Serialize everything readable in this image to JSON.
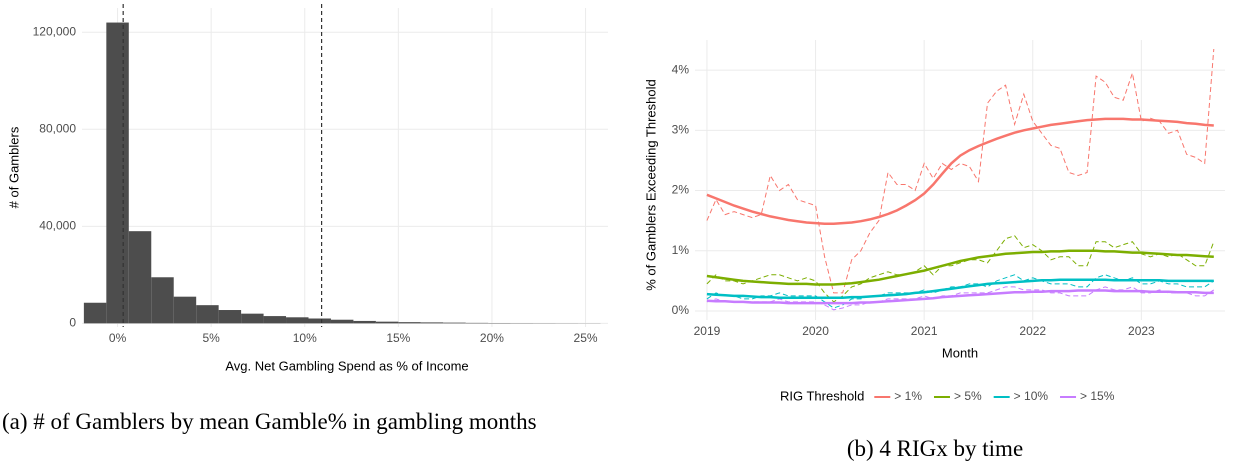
{
  "chart_data": [
    {
      "type": "histogram",
      "ylabel": "# of Gamblers",
      "xlabel": "Avg. Net Gambling Spend as % of Income",
      "caption": "(a) # of Gamblers by mean Gamble% in gambling months",
      "bins": [
        -1.8,
        -0.6,
        0.6,
        1.8,
        3.0,
        4.2,
        5.4,
        6.6,
        7.8,
        9.0,
        10.2,
        11.4,
        12.6,
        13.8,
        15.0,
        16.2,
        17.4,
        18.6,
        19.8,
        21.0,
        22.2,
        23.4,
        24.6,
        25.8
      ],
      "values": [
        8500,
        124000,
        38000,
        19000,
        11000,
        7500,
        5500,
        4000,
        3000,
        2500,
        2000,
        1500,
        1000,
        700,
        500,
        400,
        300,
        200,
        150,
        120,
        100,
        80,
        60
      ],
      "color": "#4d4d4d",
      "vlines": [
        0.3,
        10.9
      ],
      "xlim": [
        -1.9,
        26.2
      ],
      "ylim": [
        -1500,
        130000
      ],
      "xticks": [
        {
          "value": 0,
          "label": "0%"
        },
        {
          "value": 5,
          "label": "5%"
        },
        {
          "value": 10,
          "label": "10%"
        },
        {
          "value": 15,
          "label": "15%"
        },
        {
          "value": 20,
          "label": "20%"
        },
        {
          "value": 25,
          "label": "25%"
        }
      ],
      "yticks": [
        0,
        {
          "value": 40000,
          "label": "40,000"
        },
        {
          "value": 80000,
          "label": "80,000"
        },
        {
          "value": 120000,
          "label": "120,000"
        }
      ],
      "grid": true
    },
    {
      "type": "line",
      "ylabel": "% of Gamblers Exceeding Threshold",
      "xlabel": "Month",
      "caption": "(b) 4 RIGx by time",
      "legend_title": "RIG Threshold",
      "legend": "bottom",
      "x": [
        2019,
        2019.083,
        2019.167,
        2019.25,
        2019.333,
        2019.417,
        2019.5,
        2019.583,
        2019.667,
        2019.75,
        2019.833,
        2019.917,
        2020,
        2020.083,
        2020.167,
        2020.25,
        2020.333,
        2020.417,
        2020.5,
        2020.583,
        2020.667,
        2020.75,
        2020.833,
        2020.917,
        2021,
        2021.083,
        2021.167,
        2021.25,
        2021.333,
        2021.417,
        2021.5,
        2021.583,
        2021.667,
        2021.75,
        2021.833,
        2021.917,
        2022,
        2022.083,
        2022.167,
        2022.25,
        2022.333,
        2022.417,
        2022.5,
        2022.583,
        2022.667,
        2022.75,
        2022.833,
        2022.917,
        2023,
        2023.083,
        2023.167,
        2023.25,
        2023.333,
        2023.417,
        2023.5,
        2023.583,
        2023.667
      ],
      "series": [
        {
          "name": "> 1%",
          "color": "#f8766d",
          "values": [
            1.93,
            1.87,
            1.81,
            1.75,
            1.7,
            1.65,
            1.61,
            1.57,
            1.54,
            1.51,
            1.49,
            1.47,
            1.46,
            1.45,
            1.45,
            1.46,
            1.47,
            1.49,
            1.52,
            1.56,
            1.61,
            1.67,
            1.75,
            1.84,
            1.95,
            2.1,
            2.28,
            2.45,
            2.58,
            2.67,
            2.74,
            2.8,
            2.86,
            2.91,
            2.96,
            3.0,
            3.03,
            3.06,
            3.09,
            3.11,
            3.13,
            3.15,
            3.17,
            3.18,
            3.19,
            3.19,
            3.19,
            3.18,
            3.18,
            3.17,
            3.16,
            3.15,
            3.14,
            3.12,
            3.11,
            3.09,
            3.08
          ],
          "raw_values": [
            1.5,
            1.85,
            1.6,
            1.65,
            1.6,
            1.55,
            1.6,
            2.25,
            2.0,
            2.1,
            1.85,
            1.8,
            1.75,
            0.9,
            0.3,
            0.3,
            0.85,
            1.0,
            1.3,
            1.5,
            2.3,
            2.1,
            2.1,
            2.0,
            2.45,
            2.2,
            2.45,
            2.35,
            2.45,
            2.4,
            2.15,
            3.45,
            3.65,
            3.75,
            3.1,
            3.6,
            3.15,
            2.95,
            2.75,
            2.7,
            2.3,
            2.25,
            2.3,
            3.9,
            3.8,
            3.55,
            3.5,
            3.95,
            3.15,
            3.2,
            3.15,
            2.95,
            3.0,
            2.6,
            2.55,
            2.45,
            4.35
          ]
        },
        {
          "name": "> 5%",
          "color": "#7cae00",
          "values": [
            0.58,
            0.56,
            0.54,
            0.52,
            0.5,
            0.49,
            0.48,
            0.47,
            0.46,
            0.45,
            0.45,
            0.45,
            0.44,
            0.44,
            0.44,
            0.45,
            0.46,
            0.48,
            0.5,
            0.52,
            0.55,
            0.58,
            0.61,
            0.64,
            0.67,
            0.71,
            0.75,
            0.79,
            0.83,
            0.86,
            0.89,
            0.91,
            0.93,
            0.95,
            0.96,
            0.97,
            0.98,
            0.98,
            0.99,
            0.99,
            1.0,
            1.0,
            1.0,
            1.0,
            0.99,
            0.99,
            0.98,
            0.97,
            0.97,
            0.96,
            0.95,
            0.94,
            0.93,
            0.93,
            0.92,
            0.91,
            0.9
          ],
          "raw_values": [
            0.45,
            0.6,
            0.5,
            0.5,
            0.45,
            0.5,
            0.55,
            0.6,
            0.6,
            0.55,
            0.5,
            0.55,
            0.5,
            0.3,
            0.15,
            0.25,
            0.4,
            0.45,
            0.55,
            0.6,
            0.65,
            0.6,
            0.6,
            0.65,
            0.75,
            0.6,
            0.75,
            0.75,
            0.8,
            0.85,
            0.85,
            0.8,
            1.0,
            1.2,
            1.25,
            1.05,
            1.1,
            1.0,
            0.85,
            0.9,
            0.9,
            0.75,
            0.75,
            1.15,
            1.15,
            1.05,
            1.1,
            1.15,
            0.95,
            0.9,
            0.95,
            0.9,
            0.95,
            0.85,
            0.75,
            0.75,
            1.15
          ]
        },
        {
          "name": "> 10%",
          "color": "#00bfc4",
          "values": [
            0.28,
            0.27,
            0.26,
            0.25,
            0.25,
            0.24,
            0.23,
            0.23,
            0.22,
            0.22,
            0.22,
            0.22,
            0.22,
            0.22,
            0.22,
            0.22,
            0.23,
            0.23,
            0.24,
            0.25,
            0.26,
            0.27,
            0.28,
            0.3,
            0.31,
            0.33,
            0.35,
            0.37,
            0.39,
            0.41,
            0.43,
            0.45,
            0.46,
            0.47,
            0.48,
            0.49,
            0.5,
            0.51,
            0.51,
            0.52,
            0.52,
            0.52,
            0.52,
            0.52,
            0.52,
            0.51,
            0.51,
            0.51,
            0.51,
            0.51,
            0.51,
            0.5,
            0.5,
            0.5,
            0.5,
            0.5,
            0.5
          ],
          "raw_values": [
            0.2,
            0.3,
            0.25,
            0.25,
            0.2,
            0.2,
            0.25,
            0.25,
            0.3,
            0.25,
            0.25,
            0.25,
            0.25,
            0.15,
            0.05,
            0.1,
            0.2,
            0.2,
            0.25,
            0.25,
            0.3,
            0.3,
            0.3,
            0.3,
            0.35,
            0.3,
            0.35,
            0.4,
            0.4,
            0.45,
            0.45,
            0.4,
            0.5,
            0.55,
            0.6,
            0.5,
            0.55,
            0.5,
            0.45,
            0.45,
            0.45,
            0.4,
            0.4,
            0.55,
            0.6,
            0.55,
            0.5,
            0.55,
            0.45,
            0.45,
            0.5,
            0.45,
            0.45,
            0.4,
            0.4,
            0.4,
            0.5
          ]
        },
        {
          "name": "> 15%",
          "color": "#c77cff",
          "values": [
            0.17,
            0.16,
            0.16,
            0.15,
            0.15,
            0.14,
            0.14,
            0.14,
            0.14,
            0.13,
            0.13,
            0.13,
            0.13,
            0.13,
            0.13,
            0.13,
            0.13,
            0.14,
            0.14,
            0.15,
            0.16,
            0.17,
            0.18,
            0.19,
            0.2,
            0.21,
            0.23,
            0.24,
            0.25,
            0.26,
            0.27,
            0.28,
            0.29,
            0.3,
            0.31,
            0.31,
            0.32,
            0.32,
            0.33,
            0.33,
            0.33,
            0.34,
            0.34,
            0.34,
            0.34,
            0.33,
            0.33,
            0.33,
            0.33,
            0.32,
            0.32,
            0.32,
            0.31,
            0.31,
            0.31,
            0.3,
            0.3
          ],
          "raw_values": [
            0.15,
            0.2,
            0.15,
            0.15,
            0.15,
            0.15,
            0.15,
            0.15,
            0.2,
            0.15,
            0.15,
            0.15,
            0.15,
            0.1,
            0.02,
            0.05,
            0.1,
            0.1,
            0.15,
            0.15,
            0.2,
            0.2,
            0.2,
            0.2,
            0.25,
            0.2,
            0.25,
            0.25,
            0.3,
            0.3,
            0.3,
            0.3,
            0.35,
            0.4,
            0.4,
            0.35,
            0.35,
            0.35,
            0.3,
            0.3,
            0.25,
            0.25,
            0.25,
            0.35,
            0.4,
            0.35,
            0.35,
            0.4,
            0.3,
            0.3,
            0.35,
            0.3,
            0.3,
            0.3,
            0.25,
            0.25,
            0.35
          ]
        }
      ],
      "xlim": [
        2018.89,
        2023.77
      ],
      "ylim": [
        -0.15,
        4.5
      ],
      "xticks": [
        2019,
        2020,
        2021,
        2022,
        2023
      ],
      "yticks": [
        {
          "value": 0,
          "label": "0%"
        },
        {
          "value": 1,
          "label": "1%"
        },
        {
          "value": 2,
          "label": "2%"
        },
        {
          "value": 3,
          "label": "3%"
        },
        {
          "value": 4,
          "label": "4%"
        }
      ],
      "grid": true
    }
  ]
}
